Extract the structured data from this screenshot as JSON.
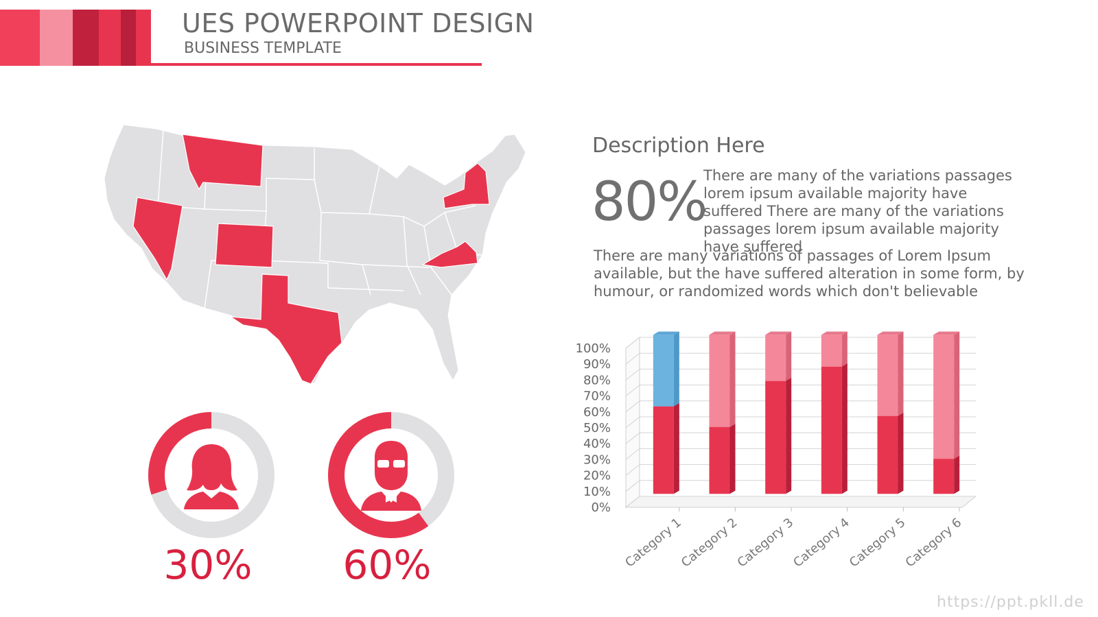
{
  "header": {
    "title": "UES POWERPOINT DESIGN",
    "subtitle": "BUSINESS TEMPLATE",
    "stripe_colors": [
      "#f0405a",
      "#f590a0",
      "#c0223e",
      "#e8354f",
      "#b81f3a",
      "#e8354f"
    ]
  },
  "colors": {
    "accent": "#e8354f",
    "dark_accent": "#c0223e",
    "light_accent": "#f48799",
    "gray": "#e0dfe1",
    "blue": "#6db3df"
  },
  "map": {
    "highlighted_states": [
      "Montana",
      "Nevada",
      "Colorado",
      "Texas",
      "New York",
      "Virginia"
    ]
  },
  "donuts": [
    {
      "icon": "woman-icon",
      "percent": 30,
      "label": "30%"
    },
    {
      "icon": "man-icon",
      "percent": 60,
      "label": "60%"
    }
  ],
  "description": {
    "title": "Description Here",
    "big_percent": "80%",
    "paragraph1": "There are many of the variations passages lorem ipsum available majority have suffered There are many of the variations passages lorem ipsum available majority have suffered",
    "paragraph2": "There are many variations of passages  of Lorem Ipsum available, but the have suffered alteration in some  form, by humour, or randomized words which  don't believable"
  },
  "chart_data": {
    "type": "bar",
    "stacked": true,
    "categories": [
      "Category 1",
      "Category 2",
      "Category 3",
      "Category 4",
      "Category 5",
      "Category 6"
    ],
    "series": [
      {
        "values": [
          55,
          42,
          71,
          80,
          49,
          22
        ]
      },
      {
        "values": [
          45,
          58,
          29,
          20,
          51,
          78
        ]
      }
    ],
    "y_ticks": [
      "0%",
      "10%",
      "20%",
      "30%",
      "40%",
      "50%",
      "60%",
      "70%",
      "80%",
      "90%",
      "100%"
    ],
    "ylim": [
      0,
      100
    ],
    "grid": true,
    "legend": "none"
  },
  "watermark": "https://ppt.pkll.de"
}
